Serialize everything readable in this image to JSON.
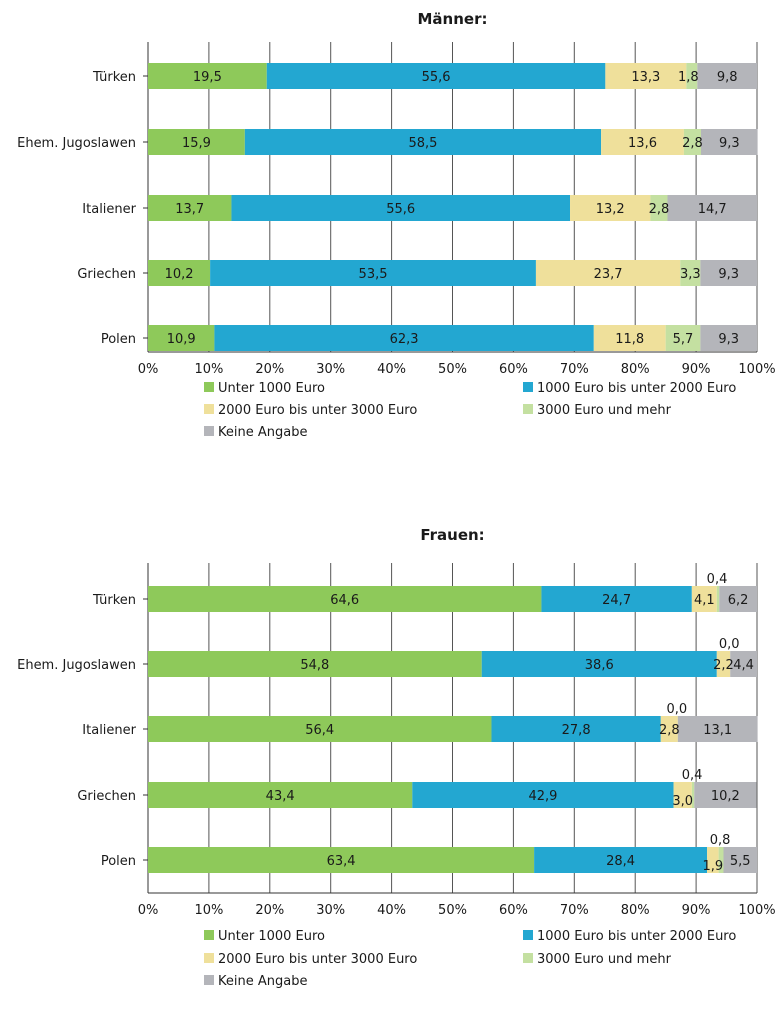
{
  "chart_data": [
    {
      "type": "bar",
      "orientation": "horizontal",
      "stacked": true,
      "title": "Männer:",
      "categories": [
        "Türken",
        "Ehem. Jugoslawen",
        "Italiener",
        "Griechen",
        "Polen"
      ],
      "series": [
        {
          "name": "Unter 1000 Euro",
          "color": "#8ec95a",
          "values": [
            19.5,
            15.9,
            13.7,
            10.2,
            10.9
          ],
          "labels": [
            "19,5",
            "15,9",
            "13,7",
            "10,2",
            "10,9"
          ]
        },
        {
          "name": "1000 Euro bis unter 2000 Euro",
          "color": "#23a7d1",
          "values": [
            55.6,
            58.5,
            55.6,
            53.5,
            62.3
          ],
          "labels": [
            "55,6",
            "58,5",
            "55,6",
            "53,5",
            "62,3"
          ]
        },
        {
          "name": "2000 Euro bis unter 3000 Euro",
          "color": "#efe09b",
          "values": [
            13.3,
            13.6,
            13.2,
            23.7,
            11.8
          ],
          "labels": [
            "13,3",
            "13,6",
            "13,2",
            "23,7",
            "11,8"
          ]
        },
        {
          "name": "3000 Euro und mehr",
          "color": "#c4e0a1",
          "values": [
            1.8,
            2.8,
            2.8,
            3.3,
            5.7
          ],
          "labels": [
            "1,8",
            "2,8",
            "2,8",
            "3,3",
            "5,7"
          ]
        },
        {
          "name": "Keine Angabe",
          "color": "#b4b5ba",
          "values": [
            9.8,
            9.3,
            14.7,
            9.3,
            9.3
          ],
          "labels": [
            "9,8",
            "9,3",
            "14,7",
            "9,3",
            "9,3"
          ]
        }
      ],
      "x_ticks": [
        "0%",
        "10%",
        "20%",
        "30%",
        "40%",
        "50%",
        "60%",
        "70%",
        "80%",
        "90%",
        "100%"
      ],
      "xlim": [
        0,
        100
      ],
      "grid": true,
      "legend_position": "bottom"
    },
    {
      "type": "bar",
      "orientation": "horizontal",
      "stacked": true,
      "title": "Frauen:",
      "categories": [
        "Türken",
        "Ehem. Jugoslawen",
        "Italiener",
        "Griechen",
        "Polen"
      ],
      "series": [
        {
          "name": "Unter 1000 Euro",
          "color": "#8ec95a",
          "values": [
            64.6,
            54.8,
            56.4,
            43.4,
            63.4
          ],
          "labels": [
            "64,6",
            "54,8",
            "56,4",
            "43,4",
            "63,4"
          ]
        },
        {
          "name": "1000 Euro bis unter 2000 Euro",
          "color": "#23a7d1",
          "values": [
            24.7,
            38.6,
            27.8,
            42.9,
            28.4
          ],
          "labels": [
            "24,7",
            "38,6",
            "27,8",
            "42,9",
            "28,4"
          ]
        },
        {
          "name": "2000 Euro bis unter 3000 Euro",
          "color": "#efe09b",
          "values": [
            4.1,
            2.2,
            2.8,
            3.0,
            1.9
          ],
          "labels": [
            "4,1",
            "2,2",
            "2,8",
            "3,0",
            "1,9"
          ]
        },
        {
          "name": "3000 Euro und mehr",
          "color": "#c4e0a1",
          "values": [
            0.4,
            0.0,
            0.0,
            0.4,
            0.8
          ],
          "labels": [
            "0,4",
            "0,0",
            "0,0",
            "0,4",
            "0,8"
          ]
        },
        {
          "name": "Keine Angabe",
          "color": "#b4b5ba",
          "values": [
            6.2,
            4.4,
            13.1,
            10.2,
            5.5
          ],
          "labels": [
            "6,2",
            "4,4",
            "13,1",
            "10,2",
            "5,5"
          ]
        }
      ],
      "x_ticks": [
        "0%",
        "10%",
        "20%",
        "30%",
        "40%",
        "50%",
        "60%",
        "70%",
        "80%",
        "90%",
        "100%"
      ],
      "xlim": [
        0,
        100
      ],
      "grid": true,
      "legend_position": "bottom"
    }
  ]
}
